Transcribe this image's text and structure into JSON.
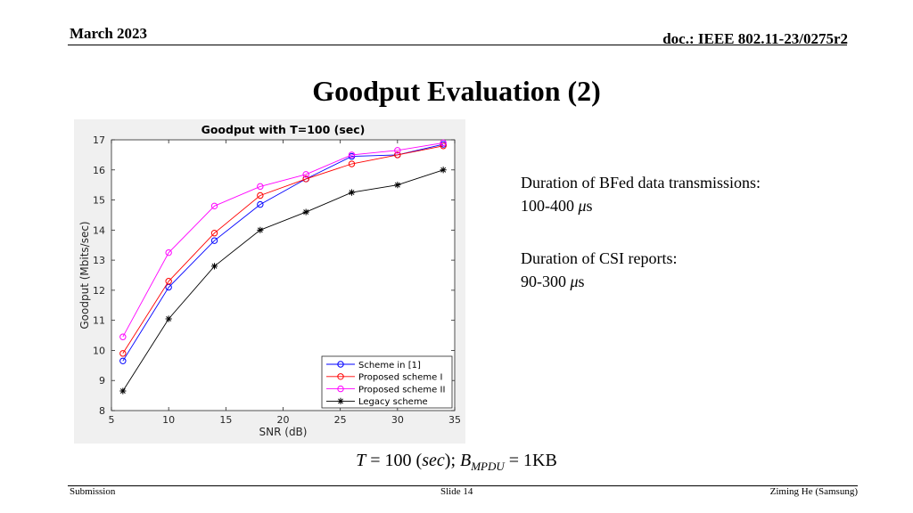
{
  "header": {
    "date": "March 2023",
    "doc": "doc.: IEEE 802.11-23/0275r2"
  },
  "slide_title": "Goodput Evaluation (2)",
  "notes": [
    {
      "line1": "Duration of BFed data transmissions:",
      "line2_num": "100-400 ",
      "mu": "μ",
      "unit": "s"
    },
    {
      "line1": "Duration of CSI reports:",
      "line2_num": "90-300 ",
      "mu": "μ",
      "unit": "s"
    }
  ],
  "caption": {
    "t_var": "T",
    "t_expr": " = 100 (",
    "t_unit": "sec",
    "t_close": "); ",
    "b_var": "B",
    "b_sub": "MPDU",
    "b_expr": " = 1KB"
  },
  "footer": {
    "left": "Submission",
    "center": "Slide 14",
    "right": "Ziming He (Samsung)"
  },
  "chart_data": {
    "type": "line",
    "title": "Goodput with T=100 (sec)",
    "xlabel": "SNR (dB)",
    "ylabel": "Goodput (Mbits/sec)",
    "xlim": [
      5,
      35
    ],
    "ylim": [
      8,
      17
    ],
    "xticks": [
      5,
      10,
      15,
      20,
      25,
      30,
      35
    ],
    "yticks": [
      8,
      9,
      10,
      11,
      12,
      13,
      14,
      15,
      16,
      17
    ],
    "grid": false,
    "legend_position": "bottom-right",
    "x": [
      6,
      10,
      14,
      18,
      22,
      26,
      30,
      34
    ],
    "series": [
      {
        "name": "Scheme in [1]",
        "color": "#0000ff",
        "marker": "circle",
        "values": [
          9.65,
          12.1,
          13.65,
          14.85,
          15.7,
          16.45,
          16.5,
          16.85
        ]
      },
      {
        "name": "Proposed scheme I",
        "color": "#ff0000",
        "marker": "circle",
        "values": [
          9.9,
          12.3,
          13.9,
          15.15,
          15.7,
          16.2,
          16.5,
          16.8
        ]
      },
      {
        "name": "Proposed scheme II",
        "color": "#ff00ff",
        "marker": "circle",
        "values": [
          10.45,
          13.25,
          14.8,
          15.45,
          15.85,
          16.5,
          16.65,
          16.9
        ]
      },
      {
        "name": "Legacy scheme",
        "color": "#000000",
        "marker": "star",
        "values": [
          8.65,
          11.05,
          12.8,
          14.0,
          14.6,
          15.25,
          15.5,
          16.0
        ]
      }
    ]
  }
}
